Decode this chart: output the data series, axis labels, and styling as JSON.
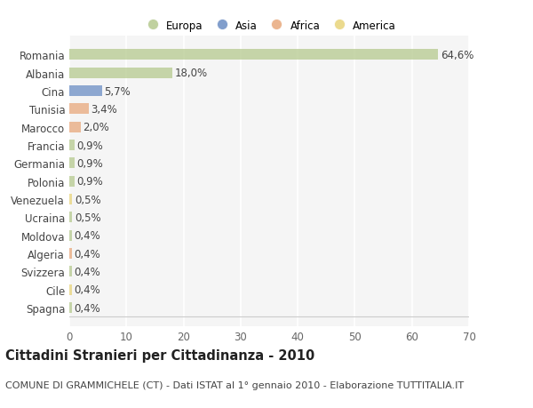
{
  "countries": [
    "Romania",
    "Albania",
    "Cina",
    "Tunisia",
    "Marocco",
    "Francia",
    "Germania",
    "Polonia",
    "Venezuela",
    "Ucraina",
    "Moldova",
    "Algeria",
    "Svizzera",
    "Cile",
    "Spagna"
  ],
  "values": [
    64.6,
    18.0,
    5.7,
    3.4,
    2.0,
    0.9,
    0.9,
    0.9,
    0.5,
    0.5,
    0.4,
    0.4,
    0.4,
    0.4,
    0.4
  ],
  "labels": [
    "64,6%",
    "18,0%",
    "5,7%",
    "3,4%",
    "2,0%",
    "0,9%",
    "0,9%",
    "0,9%",
    "0,5%",
    "0,5%",
    "0,4%",
    "0,4%",
    "0,4%",
    "0,4%",
    "0,4%"
  ],
  "colors": [
    "#b5c98e",
    "#b5c98e",
    "#6b8dc4",
    "#e8a87c",
    "#e8a87c",
    "#b5c98e",
    "#b5c98e",
    "#b5c98e",
    "#e8d47a",
    "#b5c98e",
    "#b5c98e",
    "#e8a87c",
    "#b5c98e",
    "#e8d47a",
    "#b5c98e"
  ],
  "legend_labels": [
    "Europa",
    "Asia",
    "Africa",
    "America"
  ],
  "legend_colors": [
    "#b5c98e",
    "#6b8dc4",
    "#e8a87c",
    "#e8d47a"
  ],
  "xlim": [
    0,
    70
  ],
  "xticks": [
    0,
    10,
    20,
    30,
    40,
    50,
    60,
    70
  ],
  "title": "Cittadini Stranieri per Cittadinanza - 2010",
  "subtitle": "COMUNE DI GRAMMICHELE (CT) - Dati ISTAT al 1° gennaio 2010 - Elaborazione TUTTITALIA.IT",
  "background_color": "#ffffff",
  "plot_bg_color": "#f5f5f5",
  "bar_height": 0.6,
  "grid_color": "#ffffff",
  "label_fontsize": 8.5,
  "title_fontsize": 10.5,
  "subtitle_fontsize": 8.0,
  "ytick_fontsize": 8.5,
  "xtick_fontsize": 8.5
}
